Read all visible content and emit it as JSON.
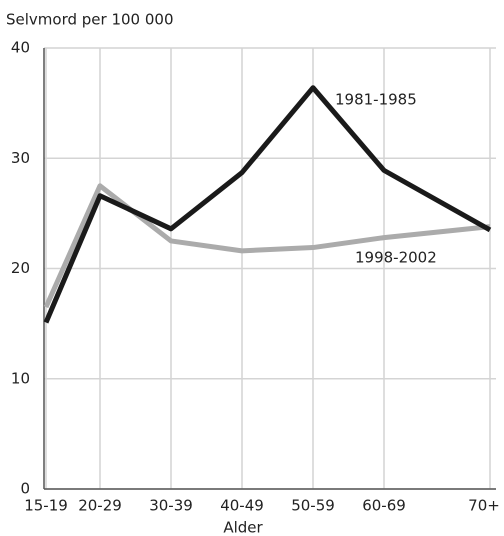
{
  "chart_data": {
    "type": "line",
    "y_axis_label": "Selvmord per 100 000",
    "x_axis_label": "Alder",
    "categories": [
      "15-19",
      "20-29",
      "30-39",
      "40-49",
      "50-59",
      "60-69",
      "70+"
    ],
    "series": [
      {
        "name": "1981-1985",
        "color": "#1a1a1a",
        "values": [
          15.1,
          26.6,
          23.6,
          28.7,
          36.4,
          28.9,
          23.5
        ]
      },
      {
        "name": "1998-2002",
        "color": "#ababab",
        "values": [
          16.5,
          27.5,
          22.5,
          21.6,
          21.9,
          22.8,
          23.8
        ]
      }
    ],
    "ylim": [
      0,
      40
    ],
    "yticks": [
      0,
      10,
      20,
      30,
      40
    ],
    "grid": true
  }
}
